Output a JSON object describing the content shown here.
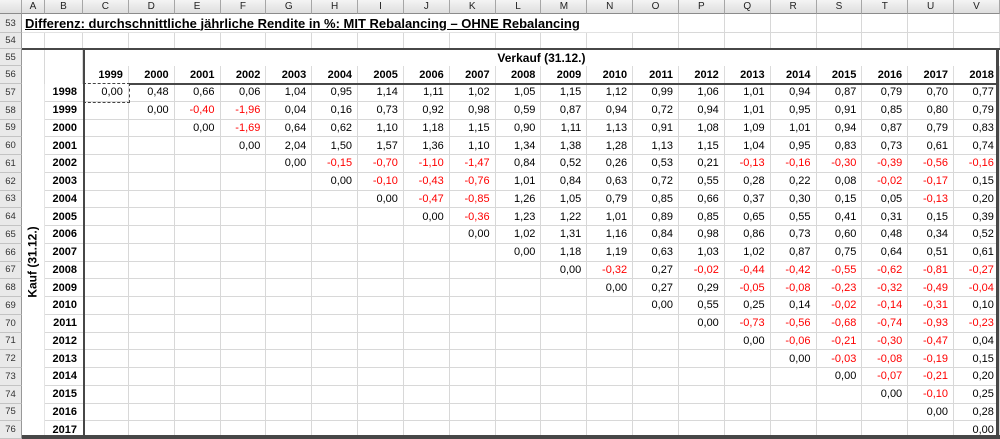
{
  "title": "Differenz: durchschnittliche jährliche Rendite in %: MIT Rebalancing – OHNE Rebalancing",
  "axis": {
    "sell_label": "Verkauf (31.12.)",
    "buy_label": "Kauf (31.12.)",
    "sell_years": [
      "1999",
      "2000",
      "2001",
      "2002",
      "2003",
      "2004",
      "2005",
      "2006",
      "2007",
      "2008",
      "2009",
      "2010",
      "2011",
      "2012",
      "2013",
      "2014",
      "2015",
      "2016",
      "2017",
      "2018"
    ],
    "buy_years": [
      "1998",
      "1999",
      "2000",
      "2001",
      "2002",
      "2003",
      "2004",
      "2005",
      "2006",
      "2007",
      "2008",
      "2009",
      "2010",
      "2011",
      "2012",
      "2013",
      "2014",
      "2015",
      "2016",
      "2017"
    ]
  },
  "sheet": {
    "column_letters": [
      "A",
      "B",
      "C",
      "D",
      "E",
      "F",
      "G",
      "H",
      "I",
      "J",
      "K",
      "L",
      "M",
      "N",
      "O",
      "P",
      "Q",
      "R",
      "S",
      "T",
      "U",
      "V"
    ],
    "row_numbers": [
      "53",
      "54",
      "55",
      "56",
      "57",
      "58",
      "59",
      "60",
      "61",
      "62",
      "63",
      "64",
      "65",
      "66",
      "67",
      "68",
      "69",
      "70",
      "71",
      "72",
      "73",
      "74",
      "75",
      "76"
    ]
  },
  "selection": {
    "cell": "C57",
    "value": "0,00"
  },
  "colors": {
    "negative": "#ff0000",
    "positive": "#000000",
    "grid_line": "#d8d8d8",
    "heavy_border": "#474747",
    "header_bg": "#e9e9e9"
  },
  "matrix": [
    [
      "0,00",
      "0,48",
      "0,66",
      "0,06",
      "1,04",
      "0,95",
      "1,14",
      "1,11",
      "1,02",
      "1,05",
      "1,15",
      "1,12",
      "0,99",
      "1,06",
      "1,01",
      "0,94",
      "0,87",
      "0,79",
      "0,70",
      "0,77"
    ],
    [
      null,
      "0,00",
      "-0,40",
      "-1,96",
      "0,04",
      "0,16",
      "0,73",
      "0,92",
      "0,98",
      "0,59",
      "0,87",
      "0,94",
      "0,72",
      "0,94",
      "1,01",
      "0,95",
      "0,91",
      "0,85",
      "0,80",
      "0,79"
    ],
    [
      null,
      null,
      "0,00",
      "-1,69",
      "0,64",
      "0,62",
      "1,10",
      "1,18",
      "1,15",
      "0,90",
      "1,11",
      "1,13",
      "0,91",
      "1,08",
      "1,09",
      "1,01",
      "0,94",
      "0,87",
      "0,79",
      "0,83"
    ],
    [
      null,
      null,
      null,
      "0,00",
      "2,04",
      "1,50",
      "1,57",
      "1,36",
      "1,10",
      "1,34",
      "1,38",
      "1,28",
      "1,13",
      "1,15",
      "1,04",
      "0,95",
      "0,83",
      "0,73",
      "0,61",
      "0,74"
    ],
    [
      null,
      null,
      null,
      null,
      "0,00",
      "-0,15",
      "-0,70",
      "-1,10",
      "-1,47",
      "0,84",
      "0,52",
      "0,26",
      "0,53",
      "0,21",
      "-0,13",
      "-0,16",
      "-0,30",
      "-0,39",
      "-0,56",
      "-0,16"
    ],
    [
      null,
      null,
      null,
      null,
      null,
      "0,00",
      "-0,10",
      "-0,43",
      "-0,76",
      "1,01",
      "0,84",
      "0,63",
      "0,72",
      "0,55",
      "0,28",
      "0,22",
      "0,08",
      "-0,02",
      "-0,17",
      "0,15"
    ],
    [
      null,
      null,
      null,
      null,
      null,
      null,
      "0,00",
      "-0,47",
      "-0,85",
      "1,26",
      "1,05",
      "0,79",
      "0,85",
      "0,66",
      "0,37",
      "0,30",
      "0,15",
      "0,05",
      "-0,13",
      "0,20"
    ],
    [
      null,
      null,
      null,
      null,
      null,
      null,
      null,
      "0,00",
      "-0,36",
      "1,23",
      "1,22",
      "1,01",
      "0,89",
      "0,85",
      "0,65",
      "0,55",
      "0,41",
      "0,31",
      "0,15",
      "0,39"
    ],
    [
      null,
      null,
      null,
      null,
      null,
      null,
      null,
      null,
      "0,00",
      "1,02",
      "1,31",
      "1,16",
      "0,84",
      "0,98",
      "0,86",
      "0,73",
      "0,60",
      "0,48",
      "0,34",
      "0,52"
    ],
    [
      null,
      null,
      null,
      null,
      null,
      null,
      null,
      null,
      null,
      "0,00",
      "1,18",
      "1,19",
      "0,63",
      "1,03",
      "1,02",
      "0,87",
      "0,75",
      "0,64",
      "0,51",
      "0,61"
    ],
    [
      null,
      null,
      null,
      null,
      null,
      null,
      null,
      null,
      null,
      null,
      "0,00",
      "-0,32",
      "0,27",
      "-0,02",
      "-0,44",
      "-0,42",
      "-0,55",
      "-0,62",
      "-0,81",
      "-0,27"
    ],
    [
      null,
      null,
      null,
      null,
      null,
      null,
      null,
      null,
      null,
      null,
      null,
      "0,00",
      "0,27",
      "0,29",
      "-0,05",
      "-0,08",
      "-0,23",
      "-0,32",
      "-0,49",
      "-0,04"
    ],
    [
      null,
      null,
      null,
      null,
      null,
      null,
      null,
      null,
      null,
      null,
      null,
      null,
      "0,00",
      "0,55",
      "0,25",
      "0,14",
      "-0,02",
      "-0,14",
      "-0,31",
      "0,10"
    ],
    [
      null,
      null,
      null,
      null,
      null,
      null,
      null,
      null,
      null,
      null,
      null,
      null,
      null,
      "0,00",
      "-0,73",
      "-0,56",
      "-0,68",
      "-0,74",
      "-0,93",
      "-0,23"
    ],
    [
      null,
      null,
      null,
      null,
      null,
      null,
      null,
      null,
      null,
      null,
      null,
      null,
      null,
      null,
      "0,00",
      "-0,06",
      "-0,21",
      "-0,30",
      "-0,47",
      "0,04"
    ],
    [
      null,
      null,
      null,
      null,
      null,
      null,
      null,
      null,
      null,
      null,
      null,
      null,
      null,
      null,
      null,
      "0,00",
      "-0,03",
      "-0,08",
      "-0,19",
      "0,15"
    ],
    [
      null,
      null,
      null,
      null,
      null,
      null,
      null,
      null,
      null,
      null,
      null,
      null,
      null,
      null,
      null,
      null,
      "0,00",
      "-0,07",
      "-0,21",
      "0,20"
    ],
    [
      null,
      null,
      null,
      null,
      null,
      null,
      null,
      null,
      null,
      null,
      null,
      null,
      null,
      null,
      null,
      null,
      null,
      "0,00",
      "-0,10",
      "0,25"
    ],
    [
      null,
      null,
      null,
      null,
      null,
      null,
      null,
      null,
      null,
      null,
      null,
      null,
      null,
      null,
      null,
      null,
      null,
      null,
      "0,00",
      "0,28"
    ],
    [
      null,
      null,
      null,
      null,
      null,
      null,
      null,
      null,
      null,
      null,
      null,
      null,
      null,
      null,
      null,
      null,
      null,
      null,
      null,
      "0,00"
    ]
  ]
}
